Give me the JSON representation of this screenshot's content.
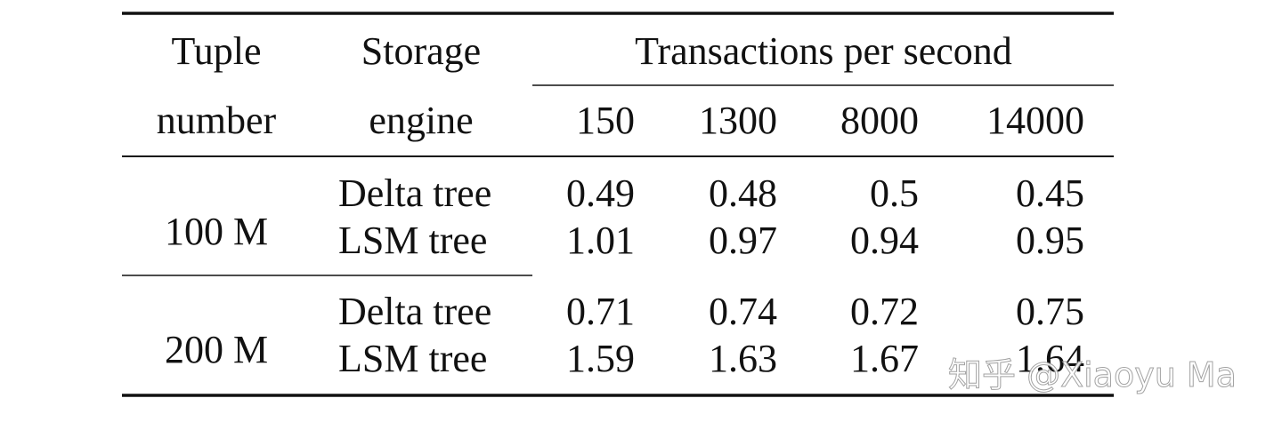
{
  "table": {
    "header": {
      "tuple": [
        "Tuple",
        "number"
      ],
      "engine": [
        "Storage",
        "engine"
      ],
      "tps": "Transactions per second",
      "columns": [
        150,
        1300,
        8000,
        14000
      ]
    },
    "groups": [
      {
        "label": "100 M",
        "rows": [
          {
            "engine": "Delta tree",
            "values": [
              0.49,
              0.48,
              0.5,
              0.45
            ]
          },
          {
            "engine": "LSM tree",
            "values": [
              1.01,
              0.97,
              0.94,
              0.95
            ]
          }
        ]
      },
      {
        "label": "200 M",
        "rows": [
          {
            "engine": "Delta tree",
            "values": [
              0.71,
              0.74,
              0.72,
              0.75
            ]
          },
          {
            "engine": "LSM tree",
            "values": [
              1.59,
              1.63,
              1.67,
              1.64
            ]
          }
        ]
      }
    ]
  },
  "watermark": "知乎 @Xiaoyu Ma"
}
